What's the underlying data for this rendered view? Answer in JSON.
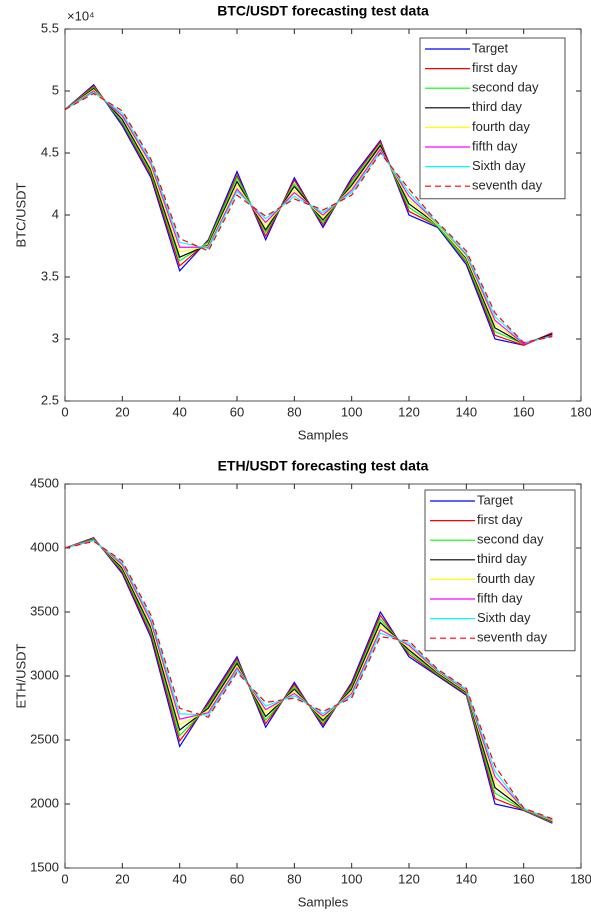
{
  "chart_data": [
    {
      "type": "line",
      "title": "BTC/USDT forecasting test data",
      "y_label": "BTC/USDT",
      "x_label": "Samples",
      "exponent_label": "×10⁴",
      "x": [
        0,
        10,
        20,
        30,
        40,
        50,
        60,
        70,
        80,
        90,
        100,
        110,
        120,
        130,
        140,
        150,
        160,
        170
      ],
      "xlim": [
        0,
        180
      ],
      "xticks": [
        0,
        20,
        40,
        60,
        80,
        100,
        120,
        140,
        160,
        180
      ],
      "ylim": [
        2.5,
        5.5
      ],
      "yticks": [
        2.5,
        3,
        3.5,
        4,
        4.5,
        5,
        5.5
      ],
      "legend": "upper-right",
      "series": [
        {
          "name": "Target",
          "color": "#0000ff",
          "values": [
            4.85,
            5.05,
            4.72,
            4.3,
            3.55,
            3.8,
            4.35,
            3.8,
            4.3,
            3.9,
            4.3,
            4.6,
            4.0,
            3.9,
            3.6,
            3.0,
            2.95,
            3.05
          ]
        },
        {
          "name": "first day",
          "color": "#ff0000",
          "values": [
            4.85,
            5.04,
            4.74,
            4.32,
            3.59,
            3.79,
            4.32,
            3.83,
            4.28,
            3.92,
            4.28,
            4.59,
            4.03,
            3.91,
            3.62,
            3.03,
            2.95,
            3.05
          ]
        },
        {
          "name": "second day",
          "color": "#00ff00",
          "values": [
            4.85,
            5.03,
            4.75,
            4.34,
            3.63,
            3.78,
            4.3,
            3.86,
            4.25,
            3.94,
            4.26,
            4.57,
            4.06,
            3.91,
            3.63,
            3.06,
            2.96,
            3.04
          ]
        },
        {
          "name": "third day",
          "color": "#000000",
          "values": [
            4.85,
            5.02,
            4.77,
            4.36,
            3.66,
            3.76,
            4.27,
            3.88,
            4.23,
            3.96,
            4.24,
            4.56,
            4.09,
            3.92,
            3.65,
            3.09,
            2.96,
            3.04
          ]
        },
        {
          "name": "fourth day",
          "color": "#ffff00",
          "values": [
            4.85,
            5.01,
            4.79,
            4.38,
            3.7,
            3.75,
            4.24,
            3.91,
            4.2,
            3.98,
            4.22,
            4.54,
            4.12,
            3.92,
            3.66,
            3.12,
            2.96,
            3.03
          ]
        },
        {
          "name": "fifth day",
          "color": "#ff00ff",
          "values": [
            4.85,
            5.0,
            4.8,
            4.41,
            3.74,
            3.74,
            4.21,
            3.94,
            4.18,
            4.0,
            4.2,
            4.53,
            4.15,
            3.93,
            3.68,
            3.15,
            2.96,
            3.03
          ]
        },
        {
          "name": "Sixth day",
          "color": "#00ffff",
          "values": [
            4.85,
            4.99,
            4.82,
            4.43,
            3.78,
            3.73,
            4.19,
            3.97,
            4.15,
            4.02,
            4.18,
            4.51,
            4.18,
            3.93,
            3.69,
            3.18,
            2.97,
            3.02
          ]
        },
        {
          "name": "seventh day",
          "color": "#ff0000",
          "dashed": true,
          "values": [
            4.85,
            4.98,
            4.84,
            4.45,
            3.81,
            3.71,
            4.16,
            3.99,
            4.13,
            4.04,
            4.16,
            4.5,
            4.21,
            3.94,
            3.71,
            3.21,
            2.97,
            3.02
          ]
        }
      ]
    },
    {
      "type": "line",
      "title": "ETH/USDT forecasting test data",
      "y_label": "ETH/USDT",
      "x_label": "Samples",
      "x": [
        0,
        10,
        20,
        30,
        40,
        50,
        60,
        70,
        80,
        90,
        100,
        110,
        120,
        130,
        140,
        150,
        160,
        170
      ],
      "xlim": [
        0,
        180
      ],
      "xticks": [
        0,
        20,
        40,
        60,
        80,
        100,
        120,
        140,
        160,
        180
      ],
      "ylim": [
        1500,
        4500
      ],
      "yticks": [
        1500,
        2000,
        2500,
        3000,
        3500,
        4000,
        4500
      ],
      "legend": "upper-right",
      "series": [
        {
          "name": "Target",
          "color": "#0000ff",
          "values": [
            4000,
            4080,
            3800,
            3300,
            2450,
            2800,
            3150,
            2600,
            2950,
            2600,
            2950,
            3500,
            3150,
            3000,
            2850,
            2000,
            1950,
            1850
          ]
        },
        {
          "name": "first day",
          "color": "#ff0000",
          "values": [
            4000,
            4076,
            3814,
            3325,
            2493,
            2783,
            3133,
            2628,
            2933,
            2618,
            2933,
            3473,
            3168,
            3008,
            2858,
            2043,
            1953,
            1855
          ]
        },
        {
          "name": "second day",
          "color": "#00ff00",
          "values": [
            4000,
            4072,
            3828,
            3350,
            2535,
            2765,
            3115,
            2655,
            2915,
            2635,
            2915,
            3445,
            3185,
            3015,
            2865,
            2085,
            1955,
            1860
          ]
        },
        {
          "name": "third day",
          "color": "#000000",
          "values": [
            4000,
            4068,
            3842,
            3375,
            2578,
            2748,
            3098,
            2683,
            2898,
            2653,
            2898,
            3418,
            3203,
            3023,
            2873,
            2128,
            1958,
            1865
          ]
        },
        {
          "name": "fourth day",
          "color": "#ffff00",
          "values": [
            4000,
            4064,
            3856,
            3400,
            2620,
            2730,
            3080,
            2710,
            2880,
            2670,
            2880,
            3390,
            3220,
            3030,
            2880,
            2170,
            1960,
            1870
          ]
        },
        {
          "name": "fifth day",
          "color": "#ff00ff",
          "values": [
            4000,
            4060,
            3870,
            3425,
            2663,
            2713,
            3063,
            2738,
            2863,
            2688,
            2863,
            3363,
            3238,
            3038,
            2888,
            2213,
            1963,
            1875
          ]
        },
        {
          "name": "Sixth day",
          "color": "#00ffff",
          "values": [
            4000,
            4056,
            3884,
            3450,
            2705,
            2695,
            3045,
            2765,
            2845,
            2705,
            2845,
            3335,
            3255,
            3045,
            2895,
            2255,
            1965,
            1880
          ]
        },
        {
          "name": "seventh day",
          "color": "#ff0000",
          "dashed": true,
          "values": [
            4000,
            4052,
            3898,
            3475,
            2748,
            2678,
            3028,
            2793,
            2828,
            2723,
            2828,
            3308,
            3273,
            3053,
            2903,
            2298,
            1968,
            1885
          ]
        }
      ]
    }
  ]
}
